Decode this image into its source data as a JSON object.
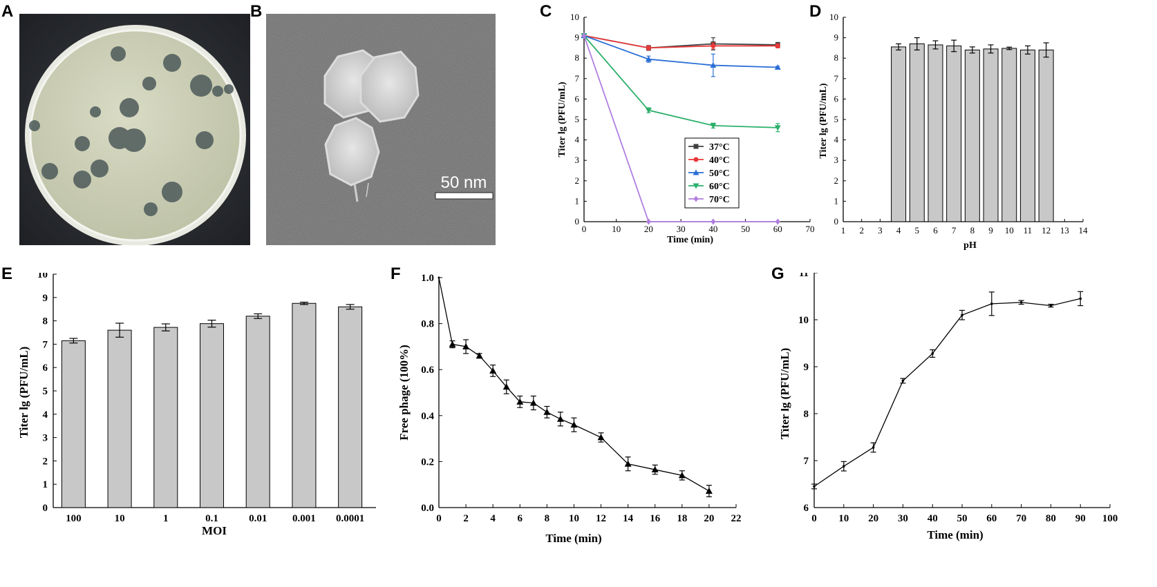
{
  "panels": {
    "A": {
      "label": "A"
    },
    "B": {
      "label": "B",
      "scale_bar": "50 nm"
    },
    "C": {
      "label": "C"
    },
    "D": {
      "label": "D"
    },
    "E": {
      "label": "E"
    },
    "F": {
      "label": "F"
    },
    "G": {
      "label": "G"
    }
  },
  "colors": {
    "bar_fill": "#c8c8c8",
    "s37": "#404040",
    "s40": "#e8393a",
    "s50": "#2a6fd6",
    "s60": "#2bb06a",
    "s70": "#b07ee0"
  },
  "chart_data": [
    {
      "id": "C",
      "type": "line",
      "title": "",
      "xlabel": "Time (min)",
      "ylabel": "Titer lg (PFU/mL)",
      "xlim": [
        0,
        70
      ],
      "ylim": [
        0,
        10
      ],
      "xticks": [
        0,
        10,
        20,
        30,
        40,
        50,
        60,
        70
      ],
      "yticks": [
        0,
        1,
        2,
        3,
        4,
        5,
        6,
        7,
        8,
        9,
        10
      ],
      "legend_position": "center",
      "series": [
        {
          "name": "37°C",
          "color": "#404040",
          "marker": "square",
          "x": [
            0,
            20,
            40,
            60
          ],
          "y": [
            9.1,
            8.5,
            8.7,
            8.65
          ],
          "err": [
            0,
            0.12,
            0.3,
            0.12
          ]
        },
        {
          "name": "40°C",
          "color": "#e8393a",
          "marker": "circle",
          "x": [
            0,
            20,
            40,
            60
          ],
          "y": [
            9.1,
            8.5,
            8.6,
            8.6
          ],
          "err": [
            0,
            0.1,
            0.15,
            0.1
          ]
        },
        {
          "name": "50°C",
          "color": "#2a6fd6",
          "marker": "triangle-up",
          "x": [
            0,
            20,
            40,
            60
          ],
          "y": [
            9.1,
            7.95,
            7.65,
            7.55
          ],
          "err": [
            0,
            0.15,
            0.55,
            0.05
          ]
        },
        {
          "name": "60°C",
          "color": "#2bb06a",
          "marker": "triangle-down",
          "x": [
            0,
            20,
            40,
            60
          ],
          "y": [
            9.1,
            5.45,
            4.7,
            4.6
          ],
          "err": [
            0,
            0.12,
            0.12,
            0.2
          ]
        },
        {
          "name": "70°C",
          "color": "#b07ee0",
          "marker": "diamond",
          "x": [
            0,
            20,
            40,
            60
          ],
          "y": [
            9.1,
            0,
            0,
            0
          ],
          "err": [
            0,
            0,
            0,
            0
          ]
        }
      ]
    },
    {
      "id": "D",
      "type": "bar",
      "title": "",
      "xlabel": "pH",
      "ylabel": "Titer lg (PFU/mL)",
      "xlim": [
        1,
        14
      ],
      "ylim": [
        0,
        10
      ],
      "xticks": [
        1,
        2,
        3,
        4,
        5,
        6,
        7,
        8,
        9,
        10,
        11,
        12,
        13,
        14
      ],
      "yticks": [
        0,
        1,
        2,
        3,
        4,
        5,
        6,
        7,
        8,
        9,
        10
      ],
      "x": [
        4,
        5,
        6,
        7,
        8,
        9,
        10,
        11,
        12
      ],
      "values": [
        8.55,
        8.7,
        8.65,
        8.6,
        8.4,
        8.45,
        8.48,
        8.4,
        8.4
      ],
      "err": [
        0.15,
        0.3,
        0.2,
        0.28,
        0.15,
        0.2,
        0.06,
        0.2,
        0.35
      ]
    },
    {
      "id": "E",
      "type": "bar",
      "title": "",
      "xlabel": "MOI",
      "ylabel": "Titer lg (PFU/mL)",
      "ylim": [
        0,
        10
      ],
      "yticks": [
        0,
        1,
        2,
        3,
        4,
        5,
        6,
        7,
        8,
        9,
        10
      ],
      "categories": [
        "100",
        "10",
        "1",
        "0.1",
        "0.01",
        "0.001",
        "0.0001"
      ],
      "values": [
        7.15,
        7.6,
        7.72,
        7.88,
        8.2,
        8.75,
        8.6
      ],
      "err": [
        0.1,
        0.3,
        0.15,
        0.15,
        0.1,
        0.05,
        0.1
      ]
    },
    {
      "id": "F",
      "type": "line",
      "title": "",
      "xlabel": "Time (min)",
      "ylabel": "Free phage (100%)",
      "xlim": [
        0,
        22
      ],
      "ylim": [
        0,
        1.0
      ],
      "xticks": [
        0,
        2,
        4,
        6,
        8,
        10,
        12,
        14,
        16,
        18,
        20,
        22
      ],
      "yticks": [
        "0.0",
        "0.2",
        "0.4",
        "0.6",
        "0.8",
        "1.0"
      ],
      "series": [
        {
          "x": [
            0,
            1,
            2,
            3,
            4,
            5,
            6,
            7,
            8,
            9,
            10,
            12,
            14,
            16,
            18,
            20
          ],
          "y": [
            1.0,
            0.71,
            0.7,
            0.66,
            0.595,
            0.525,
            0.46,
            0.455,
            0.415,
            0.385,
            0.36,
            0.305,
            0.19,
            0.165,
            0.14,
            0.072
          ],
          "err": [
            0,
            0.015,
            0.03,
            0.01,
            0.025,
            0.03,
            0.025,
            0.03,
            0.025,
            0.03,
            0.03,
            0.02,
            0.03,
            0.02,
            0.02,
            0.025
          ]
        }
      ]
    },
    {
      "id": "G",
      "type": "line",
      "title": "",
      "xlabel": "Time (min)",
      "ylabel": "Titer lg (PFU/mL)",
      "xlim": [
        0,
        100
      ],
      "ylim": [
        6,
        11
      ],
      "xticks": [
        0,
        10,
        20,
        30,
        40,
        50,
        60,
        70,
        80,
        90,
        100
      ],
      "yticks": [
        6,
        7,
        8,
        9,
        10,
        11
      ],
      "series": [
        {
          "x": [
            0,
            10,
            20,
            30,
            40,
            50,
            60,
            70,
            80,
            90
          ],
          "y": [
            6.45,
            6.88,
            7.28,
            8.7,
            9.28,
            10.1,
            10.34,
            10.37,
            10.3,
            10.45
          ],
          "err": [
            0.05,
            0.1,
            0.1,
            0.05,
            0.08,
            0.1,
            0.25,
            0.04,
            0.03,
            0.15
          ]
        }
      ]
    }
  ]
}
